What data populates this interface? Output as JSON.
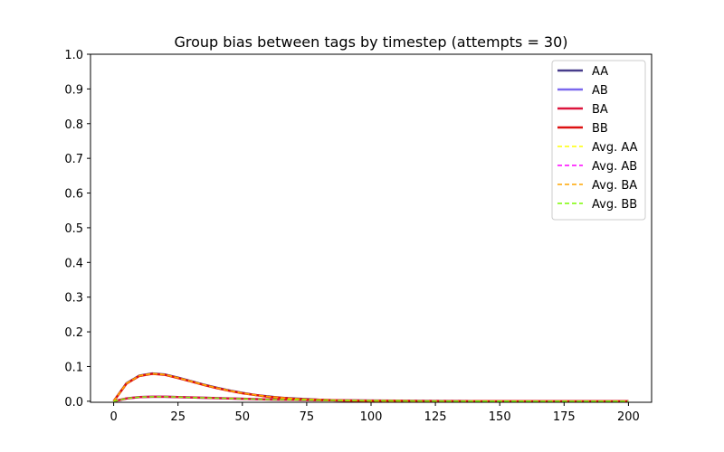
{
  "chart_data": {
    "type": "line",
    "title": "Group bias between tags by timestep (attempts = 30)",
    "xlabel": "",
    "ylabel": "",
    "xlim": [
      -9,
      209
    ],
    "ylim": [
      -0.003,
      1.0
    ],
    "xticks": [
      0,
      25,
      50,
      75,
      100,
      125,
      150,
      175,
      200
    ],
    "yticks": [
      0.0,
      0.1,
      0.2,
      0.3,
      0.4,
      0.5,
      0.6,
      0.7,
      0.8,
      0.9,
      1.0
    ],
    "ytick_labels": [
      "0.0",
      "0.1",
      "0.2",
      "0.3",
      "0.4",
      "0.5",
      "0.6",
      "0.7",
      "0.8",
      "0.9",
      "1.0"
    ],
    "legend_position": "top-right",
    "grid": false,
    "x": [
      0,
      5,
      10,
      15,
      20,
      25,
      30,
      35,
      40,
      45,
      50,
      55,
      60,
      65,
      70,
      75,
      80,
      85,
      90,
      95,
      100,
      110,
      120,
      130,
      140,
      150,
      160,
      170,
      180,
      190,
      200
    ],
    "series": [
      {
        "name": "AA",
        "color": "#483d8b",
        "style": "solid",
        "width": 2.5,
        "values": [
          0.0,
          0.052,
          0.074,
          0.08,
          0.077,
          0.068,
          0.058,
          0.048,
          0.039,
          0.031,
          0.024,
          0.018,
          0.014,
          0.01,
          0.008,
          0.006,
          0.004,
          0.003,
          0.002,
          0.0015,
          0.001,
          0.0006,
          0.0003,
          0.0002,
          0.0001,
          0.0,
          0.0,
          0.0,
          0.0,
          0.0,
          0.0
        ]
      },
      {
        "name": "AB",
        "color": "#7b68ee",
        "style": "solid",
        "width": 2.5,
        "values": [
          0.0,
          0.008,
          0.012,
          0.013,
          0.013,
          0.012,
          0.011,
          0.01,
          0.009,
          0.008,
          0.007,
          0.006,
          0.005,
          0.0045,
          0.004,
          0.0035,
          0.003,
          0.0028,
          0.0025,
          0.0023,
          0.002,
          0.0015,
          0.001,
          0.0007,
          0.0004,
          0.0002,
          0.0001,
          0.0,
          0.0,
          0.0,
          0.0
        ]
      },
      {
        "name": "BA",
        "color": "#dc143c",
        "style": "solid",
        "width": 2.5,
        "values": [
          0.0,
          0.008,
          0.012,
          0.013,
          0.013,
          0.012,
          0.011,
          0.01,
          0.009,
          0.008,
          0.007,
          0.006,
          0.005,
          0.0045,
          0.004,
          0.0035,
          0.003,
          0.0028,
          0.0025,
          0.0023,
          0.002,
          0.0015,
          0.001,
          0.0007,
          0.0004,
          0.0002,
          0.0001,
          0.0,
          0.0,
          0.0,
          0.0
        ]
      },
      {
        "name": "BB",
        "color": "#dd1111",
        "style": "solid",
        "width": 2.5,
        "values": [
          0.0,
          0.051,
          0.073,
          0.079,
          0.076,
          0.067,
          0.057,
          0.047,
          0.038,
          0.03,
          0.023,
          0.018,
          0.013,
          0.01,
          0.007,
          0.005,
          0.004,
          0.003,
          0.002,
          0.0015,
          0.001,
          0.0006,
          0.0003,
          0.0002,
          0.0001,
          0.0,
          0.0,
          0.0,
          0.0,
          0.0,
          0.0
        ]
      },
      {
        "name": "Avg. AA",
        "color": "#ffff00",
        "style": "dashed",
        "width": 1.5,
        "values": [
          0.0,
          0.0515,
          0.0735,
          0.0795,
          0.0765,
          0.0675,
          0.0575,
          0.0475,
          0.0385,
          0.0305,
          0.0235,
          0.018,
          0.0135,
          0.01,
          0.0075,
          0.0055,
          0.004,
          0.003,
          0.002,
          0.0015,
          0.001,
          0.0006,
          0.0003,
          0.0002,
          0.0001,
          0.0,
          0.0,
          0.0,
          0.0,
          0.0,
          0.0
        ]
      },
      {
        "name": "Avg. AB",
        "color": "#ff00ff",
        "style": "dashed",
        "width": 1.5,
        "values": [
          0.0,
          0.008,
          0.012,
          0.013,
          0.013,
          0.012,
          0.011,
          0.01,
          0.009,
          0.008,
          0.007,
          0.006,
          0.005,
          0.0045,
          0.004,
          0.0035,
          0.003,
          0.0028,
          0.0025,
          0.0023,
          0.002,
          0.0015,
          0.001,
          0.0007,
          0.0004,
          0.0002,
          0.0001,
          0.0,
          0.0,
          0.0,
          0.0
        ]
      },
      {
        "name": "Avg. BA",
        "color": "#ffa500",
        "style": "dashed",
        "width": 1.5,
        "values": [
          0.0,
          0.0515,
          0.0735,
          0.0795,
          0.0765,
          0.0675,
          0.0575,
          0.0475,
          0.0385,
          0.0305,
          0.0235,
          0.018,
          0.0135,
          0.01,
          0.0075,
          0.0055,
          0.004,
          0.003,
          0.002,
          0.0015,
          0.001,
          0.0006,
          0.0003,
          0.0002,
          0.0001,
          0.0,
          0.0,
          0.0,
          0.0,
          0.0,
          0.0
        ]
      },
      {
        "name": "Avg. BB",
        "color": "#7cfc00",
        "style": "dashed",
        "width": 1.5,
        "values": [
          0.0,
          0.008,
          0.012,
          0.013,
          0.013,
          0.012,
          0.011,
          0.01,
          0.009,
          0.008,
          0.007,
          0.006,
          0.005,
          0.0045,
          0.004,
          0.0035,
          0.003,
          0.0028,
          0.0025,
          0.0023,
          0.002,
          0.0015,
          0.001,
          0.0007,
          0.0004,
          0.0002,
          0.0001,
          0.0,
          0.0,
          0.0,
          0.0
        ]
      }
    ]
  }
}
